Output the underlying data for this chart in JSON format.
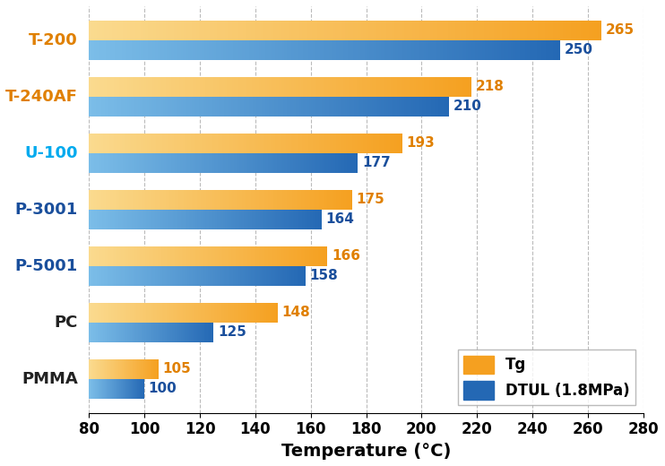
{
  "categories": [
    "T-200",
    "T-240AF",
    "U-100",
    "P-3001",
    "P-5001",
    "PC",
    "PMMA"
  ],
  "tg_values": [
    265,
    218,
    193,
    175,
    166,
    148,
    105
  ],
  "dtul_values": [
    250,
    210,
    177,
    164,
    158,
    125,
    100
  ],
  "tg_color_light": "#FADA8E",
  "tg_color_dark": "#F5A020",
  "dtul_color_light": "#7BBDE8",
  "dtul_color_dark": "#2468B4",
  "label_color_tg": "#E08000",
  "label_color_dtul": "#1A4F9C",
  "xlabel": "Temperature (°C)",
  "legend_tg": "Tg",
  "legend_dtul": "DTUL (1.8MPa)",
  "xlim_min": 80,
  "xlim_max": 280,
  "xticks": [
    80,
    100,
    120,
    140,
    160,
    180,
    200,
    220,
    240,
    260,
    280
  ],
  "bar_height": 0.35,
  "label_colors": {
    "T-200": "#E08000",
    "T-240AF": "#E08000",
    "U-100": "#00AAEE",
    "P-3001": "#1A4F9C",
    "P-5001": "#1A4F9C",
    "PC": "#222222",
    "PMMA": "#222222"
  },
  "axis_label_fontsize": 14,
  "tick_fontsize": 12,
  "bar_label_fontsize": 11,
  "yticklabel_fontsize": 13,
  "legend_fontsize": 12
}
